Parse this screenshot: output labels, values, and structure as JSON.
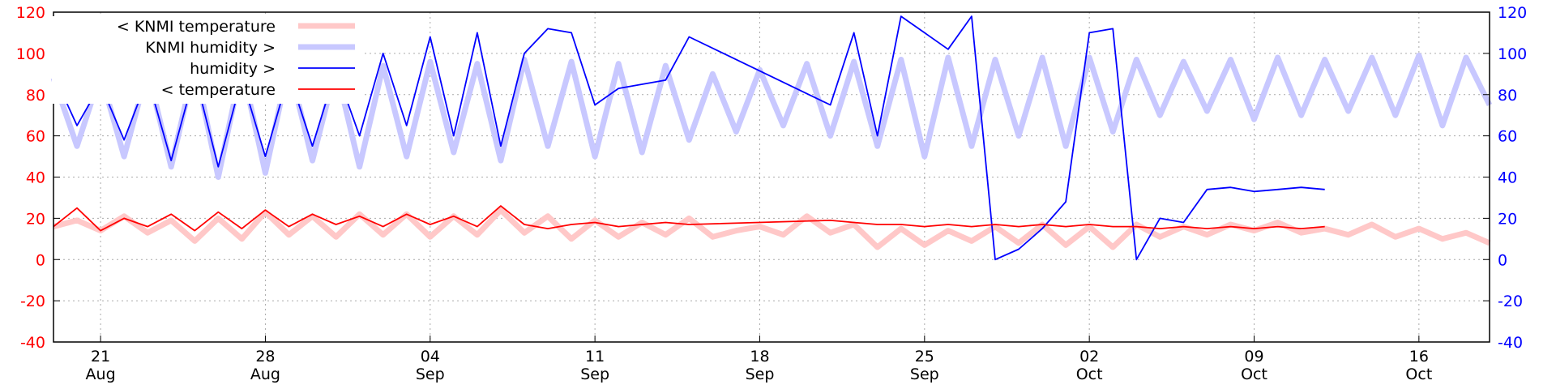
{
  "chart_data": {
    "type": "line",
    "title": "",
    "xlabel": "",
    "ylabel": "",
    "y2label": "",
    "x_range": [
      "2018-08-19",
      "2018-10-19"
    ],
    "ylim": [
      -40,
      120
    ],
    "y2lim": [
      -40,
      120
    ],
    "y_ticks": [
      -40,
      -20,
      0,
      20,
      40,
      60,
      80,
      100,
      120
    ],
    "y2_ticks": [
      -40,
      -20,
      0,
      20,
      40,
      60,
      80,
      100,
      120
    ],
    "x_ticks": [
      {
        "date": "2018-08-21",
        "day": "21",
        "month": "Aug"
      },
      {
        "date": "2018-08-28",
        "day": "28",
        "month": "Aug"
      },
      {
        "date": "2018-09-04",
        "day": "04",
        "month": "Sep"
      },
      {
        "date": "2018-09-11",
        "day": "11",
        "month": "Sep"
      },
      {
        "date": "2018-09-18",
        "day": "18",
        "month": "Sep"
      },
      {
        "date": "2018-09-25",
        "day": "25",
        "month": "Sep"
      },
      {
        "date": "2018-10-02",
        "day": "02",
        "month": "Oct"
      },
      {
        "date": "2018-10-09",
        "day": "09",
        "month": "Oct"
      },
      {
        "date": "2018-10-16",
        "day": "16",
        "month": "Oct"
      }
    ],
    "grid": true,
    "legend_position": "top-left",
    "series": [
      {
        "name": "< KNMI temperature",
        "axis": "left",
        "color": "#ffc8c8",
        "points": [
          [
            "2018-08-19",
            16
          ],
          [
            "2018-08-20",
            19
          ],
          [
            "2018-08-21",
            14
          ],
          [
            "2018-08-22",
            21
          ],
          [
            "2018-08-23",
            13
          ],
          [
            "2018-08-24",
            19
          ],
          [
            "2018-08-25",
            9
          ],
          [
            "2018-08-26",
            20
          ],
          [
            "2018-08-27",
            10
          ],
          [
            "2018-08-28",
            23
          ],
          [
            "2018-08-29",
            12
          ],
          [
            "2018-08-30",
            21
          ],
          [
            "2018-08-31",
            11
          ],
          [
            "2018-09-01",
            22
          ],
          [
            "2018-09-02",
            12
          ],
          [
            "2018-09-03",
            22
          ],
          [
            "2018-09-04",
            11
          ],
          [
            "2018-09-05",
            21
          ],
          [
            "2018-09-06",
            12
          ],
          [
            "2018-09-07",
            24
          ],
          [
            "2018-09-08",
            13
          ],
          [
            "2018-09-09",
            21
          ],
          [
            "2018-09-10",
            10
          ],
          [
            "2018-09-11",
            19
          ],
          [
            "2018-09-12",
            11
          ],
          [
            "2018-09-13",
            18
          ],
          [
            "2018-09-14",
            12
          ],
          [
            "2018-09-15",
            20
          ],
          [
            "2018-09-16",
            11
          ],
          [
            "2018-09-17",
            14
          ],
          [
            "2018-09-18",
            16
          ],
          [
            "2018-09-19",
            12
          ],
          [
            "2018-09-20",
            21
          ],
          [
            "2018-09-21",
            13
          ],
          [
            "2018-09-22",
            17
          ],
          [
            "2018-09-23",
            6
          ],
          [
            "2018-09-24",
            15
          ],
          [
            "2018-09-25",
            7
          ],
          [
            "2018-09-26",
            14
          ],
          [
            "2018-09-27",
            9
          ],
          [
            "2018-09-28",
            16
          ],
          [
            "2018-09-29",
            8
          ],
          [
            "2018-09-30",
            17
          ],
          [
            "2018-10-01",
            7
          ],
          [
            "2018-10-02",
            16
          ],
          [
            "2018-10-03",
            6
          ],
          [
            "2018-10-04",
            17
          ],
          [
            "2018-10-05",
            11
          ],
          [
            "2018-10-06",
            16
          ],
          [
            "2018-10-07",
            12
          ],
          [
            "2018-10-08",
            17
          ],
          [
            "2018-10-09",
            14
          ],
          [
            "2018-10-10",
            18
          ],
          [
            "2018-10-11",
            13
          ],
          [
            "2018-10-12",
            15
          ],
          [
            "2018-10-13",
            12
          ],
          [
            "2018-10-14",
            17
          ],
          [
            "2018-10-15",
            11
          ],
          [
            "2018-10-16",
            15
          ],
          [
            "2018-10-17",
            10
          ],
          [
            "2018-10-18",
            13
          ],
          [
            "2018-10-19",
            8
          ]
        ]
      },
      {
        "name": "KNMI humidity >",
        "axis": "right",
        "color": "#c8c8ff",
        "points": [
          [
            "2018-08-19",
            88
          ],
          [
            "2018-08-20",
            55
          ],
          [
            "2018-08-21",
            90
          ],
          [
            "2018-08-22",
            50
          ],
          [
            "2018-08-23",
            92
          ],
          [
            "2018-08-24",
            45
          ],
          [
            "2018-08-25",
            95
          ],
          [
            "2018-08-26",
            40
          ],
          [
            "2018-08-27",
            94
          ],
          [
            "2018-08-28",
            42
          ],
          [
            "2018-08-29",
            95
          ],
          [
            "2018-08-30",
            48
          ],
          [
            "2018-08-31",
            93
          ],
          [
            "2018-09-01",
            45
          ],
          [
            "2018-09-02",
            94
          ],
          [
            "2018-09-03",
            50
          ],
          [
            "2018-09-04",
            96
          ],
          [
            "2018-09-05",
            52
          ],
          [
            "2018-09-06",
            95
          ],
          [
            "2018-09-07",
            48
          ],
          [
            "2018-09-08",
            97
          ],
          [
            "2018-09-09",
            55
          ],
          [
            "2018-09-10",
            96
          ],
          [
            "2018-09-11",
            50
          ],
          [
            "2018-09-12",
            95
          ],
          [
            "2018-09-13",
            52
          ],
          [
            "2018-09-14",
            94
          ],
          [
            "2018-09-15",
            58
          ],
          [
            "2018-09-16",
            90
          ],
          [
            "2018-09-17",
            62
          ],
          [
            "2018-09-18",
            92
          ],
          [
            "2018-09-19",
            65
          ],
          [
            "2018-09-20",
            95
          ],
          [
            "2018-09-21",
            60
          ],
          [
            "2018-09-22",
            96
          ],
          [
            "2018-09-23",
            55
          ],
          [
            "2018-09-24",
            97
          ],
          [
            "2018-09-25",
            50
          ],
          [
            "2018-09-26",
            98
          ],
          [
            "2018-09-27",
            55
          ],
          [
            "2018-09-28",
            97
          ],
          [
            "2018-09-29",
            60
          ],
          [
            "2018-09-30",
            98
          ],
          [
            "2018-10-01",
            55
          ],
          [
            "2018-10-02",
            98
          ],
          [
            "2018-10-03",
            62
          ],
          [
            "2018-10-04",
            97
          ],
          [
            "2018-10-05",
            70
          ],
          [
            "2018-10-06",
            96
          ],
          [
            "2018-10-07",
            72
          ],
          [
            "2018-10-08",
            97
          ],
          [
            "2018-10-09",
            68
          ],
          [
            "2018-10-10",
            98
          ],
          [
            "2018-10-11",
            70
          ],
          [
            "2018-10-12",
            97
          ],
          [
            "2018-10-13",
            72
          ],
          [
            "2018-10-14",
            98
          ],
          [
            "2018-10-15",
            70
          ],
          [
            "2018-10-16",
            99
          ],
          [
            "2018-10-17",
            65
          ],
          [
            "2018-10-18",
            98
          ],
          [
            "2018-10-19",
            75
          ]
        ]
      },
      {
        "name": "humidity >",
        "axis": "right",
        "color": "#0000ff",
        "points": [
          [
            "2018-08-19",
            90
          ],
          [
            "2018-08-20",
            65
          ],
          [
            "2018-08-21",
            85
          ],
          [
            "2018-08-22",
            58
          ],
          [
            "2018-08-23",
            88
          ],
          [
            "2018-08-24",
            48
          ],
          [
            "2018-08-25",
            90
          ],
          [
            "2018-08-26",
            45
          ],
          [
            "2018-08-27",
            88
          ],
          [
            "2018-08-28",
            50
          ],
          [
            "2018-08-29",
            90
          ],
          [
            "2018-08-30",
            55
          ],
          [
            "2018-08-31",
            92
          ],
          [
            "2018-09-01",
            60
          ],
          [
            "2018-09-02",
            100
          ],
          [
            "2018-09-03",
            65
          ],
          [
            "2018-09-04",
            108
          ],
          [
            "2018-09-05",
            60
          ],
          [
            "2018-09-06",
            110
          ],
          [
            "2018-09-07",
            55
          ],
          [
            "2018-09-08",
            100
          ],
          [
            "2018-09-09",
            112
          ],
          [
            "2018-09-10",
            110
          ],
          [
            "2018-09-11",
            75
          ],
          [
            "2018-09-12",
            83
          ],
          [
            "2018-09-13",
            85
          ],
          [
            "2018-09-14",
            87
          ],
          [
            "2018-09-15",
            108
          ],
          [
            "2018-09-21",
            75
          ],
          [
            "2018-09-22",
            110
          ],
          [
            "2018-09-23",
            60
          ],
          [
            "2018-09-24",
            118
          ],
          [
            "2018-09-25",
            110
          ],
          [
            "2018-09-26",
            102
          ],
          [
            "2018-09-27",
            118
          ],
          [
            "2018-09-28",
            0
          ],
          [
            "2018-09-29",
            5
          ],
          [
            "2018-09-30",
            15
          ],
          [
            "2018-10-01",
            28
          ],
          [
            "2018-10-02",
            110
          ],
          [
            "2018-10-03",
            112
          ],
          [
            "2018-10-04",
            0
          ],
          [
            "2018-10-05",
            20
          ],
          [
            "2018-10-06",
            18
          ],
          [
            "2018-10-07",
            34
          ],
          [
            "2018-10-08",
            35
          ],
          [
            "2018-10-09",
            33
          ],
          [
            "2018-10-10",
            34
          ],
          [
            "2018-10-11",
            35
          ],
          [
            "2018-10-12",
            34
          ]
        ]
      },
      {
        "name": "< temperature",
        "axis": "left",
        "color": "#ff0000",
        "points": [
          [
            "2018-08-19",
            16
          ],
          [
            "2018-08-20",
            25
          ],
          [
            "2018-08-21",
            14
          ],
          [
            "2018-08-22",
            20
          ],
          [
            "2018-08-23",
            16
          ],
          [
            "2018-08-24",
            22
          ],
          [
            "2018-08-25",
            14
          ],
          [
            "2018-08-26",
            23
          ],
          [
            "2018-08-27",
            15
          ],
          [
            "2018-08-28",
            24
          ],
          [
            "2018-08-29",
            16
          ],
          [
            "2018-08-30",
            22
          ],
          [
            "2018-08-31",
            17
          ],
          [
            "2018-09-01",
            21
          ],
          [
            "2018-09-02",
            16
          ],
          [
            "2018-09-03",
            22
          ],
          [
            "2018-09-04",
            17
          ],
          [
            "2018-09-05",
            21
          ],
          [
            "2018-09-06",
            16
          ],
          [
            "2018-09-07",
            26
          ],
          [
            "2018-09-08",
            17
          ],
          [
            "2018-09-09",
            15
          ],
          [
            "2018-09-10",
            17
          ],
          [
            "2018-09-11",
            18
          ],
          [
            "2018-09-12",
            16
          ],
          [
            "2018-09-13",
            17
          ],
          [
            "2018-09-14",
            18
          ],
          [
            "2018-09-15",
            17
          ],
          [
            "2018-09-21",
            19
          ],
          [
            "2018-09-22",
            18
          ],
          [
            "2018-09-23",
            17
          ],
          [
            "2018-09-24",
            17
          ],
          [
            "2018-09-25",
            16
          ],
          [
            "2018-09-26",
            17
          ],
          [
            "2018-09-27",
            16
          ],
          [
            "2018-09-28",
            17
          ],
          [
            "2018-09-29",
            16
          ],
          [
            "2018-09-30",
            17
          ],
          [
            "2018-10-01",
            16
          ],
          [
            "2018-10-02",
            17
          ],
          [
            "2018-10-03",
            16
          ],
          [
            "2018-10-04",
            16
          ],
          [
            "2018-10-05",
            15
          ],
          [
            "2018-10-06",
            16
          ],
          [
            "2018-10-07",
            15
          ],
          [
            "2018-10-08",
            16
          ],
          [
            "2018-10-09",
            15
          ],
          [
            "2018-10-10",
            16
          ],
          [
            "2018-10-11",
            15
          ],
          [
            "2018-10-12",
            16
          ]
        ]
      }
    ]
  }
}
